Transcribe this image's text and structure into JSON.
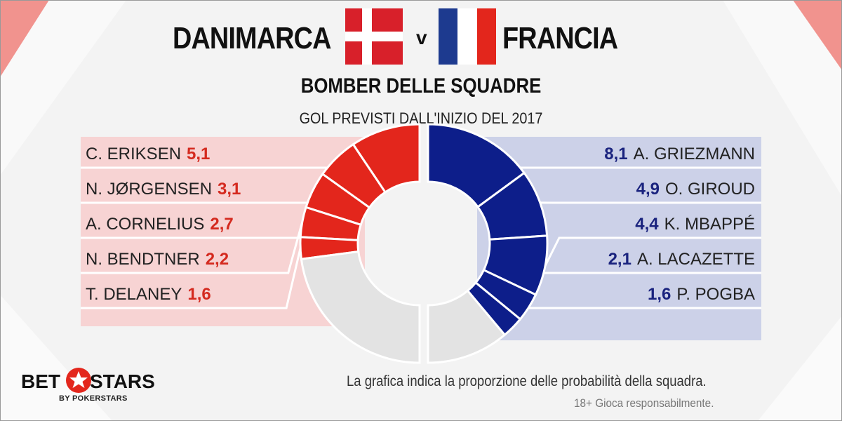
{
  "header": {
    "team_home": "DANIMARCA",
    "team_away": "FRANCIA",
    "vs": "v",
    "subtitle": "BOMBER DELLE SQUADRE",
    "subtitle2": "GOL PREVISTI DALL'INIZIO  DEL 2017"
  },
  "colors": {
    "home_accent": "#e3261c",
    "home_panel": "#f7d3d3",
    "away_accent": "#0d1e8a",
    "away_panel": "#ccd1e8",
    "remainder": "#e3e3e3"
  },
  "chart_data": {
    "type": "pie",
    "variant": "split-donut",
    "home": {
      "team": "DANIMARCA",
      "players": [
        {
          "name": "C. ERIKSEN",
          "label": "5,1",
          "value": 5.1
        },
        {
          "name": "N. JØRGENSEN",
          "label": "3,1",
          "value": 3.1
        },
        {
          "name": "A. CORNELIUS",
          "label": "2,7",
          "value": 2.7
        },
        {
          "name": "N. BENDTNER",
          "label": "2,2",
          "value": 2.2
        },
        {
          "name": "T. DELANEY",
          "label": "1,6",
          "value": 1.6
        }
      ]
    },
    "away": {
      "team": "FRANCIA",
      "players": [
        {
          "name": "A. GRIEZMANN",
          "label": "8,1",
          "value": 8.1
        },
        {
          "name": "O. GIROUD",
          "label": "4,9",
          "value": 4.9
        },
        {
          "name": "K. MBAPPÉ",
          "label": "4,4",
          "value": 4.4
        },
        {
          "name": "A. LACAZETTE",
          "label": "2,1",
          "value": 2.1
        },
        {
          "name": "P. POGBA",
          "label": "1,6",
          "value": 1.6
        }
      ]
    }
  },
  "footer": {
    "note": "La grafica indica la proporzione delle probabilità della squadra.",
    "legal": "18+ Gioca responsabilmente.",
    "logo_bet": "BET",
    "logo_stars": "STARS",
    "logo_sub": "BY POKERSTARS"
  }
}
